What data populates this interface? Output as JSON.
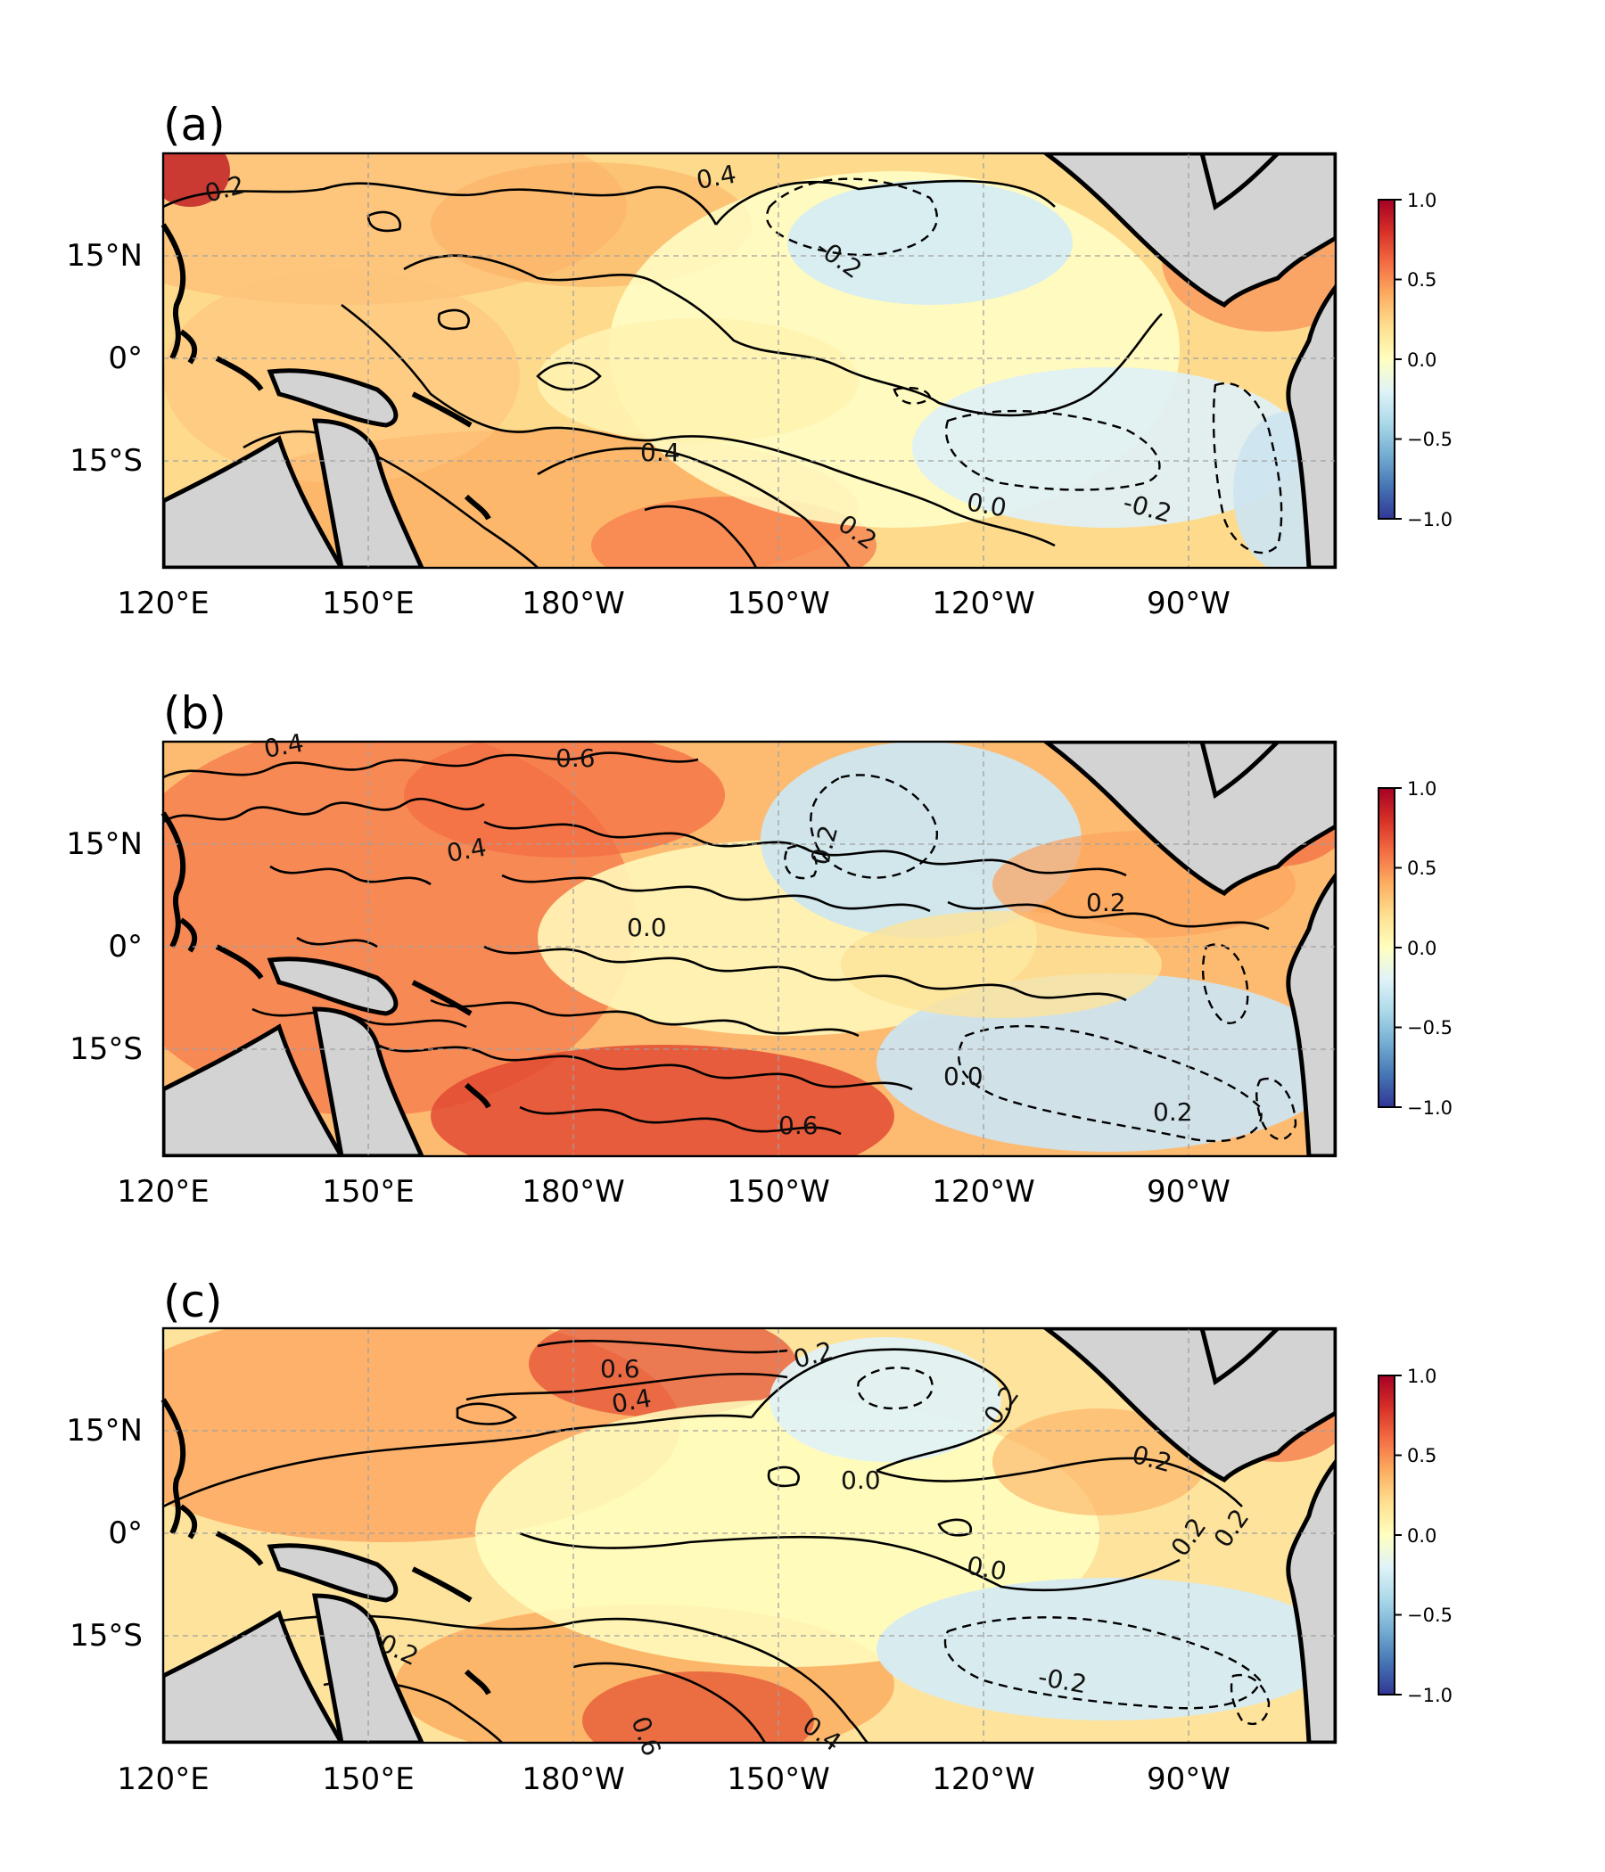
{
  "figure": {
    "panels": [
      {
        "label": "(a)",
        "contour_labels": [
          "0.2",
          "0.4",
          "-0.2",
          "0.4",
          "0.2",
          "0.0",
          "-0.2"
        ]
      },
      {
        "label": "(b)",
        "contour_labels": [
          "0.4",
          "0.6",
          "0.4",
          "0.2",
          "0.0",
          "0.2",
          "0.0",
          "0.6",
          "0.2"
        ]
      },
      {
        "label": "(c)",
        "contour_labels": [
          "0.6",
          "0.4",
          "0.2",
          "0.0",
          "0.2",
          "0.2",
          "0.0",
          "0.2",
          "0.2",
          "-0.2",
          "0.6",
          "0.4",
          "0.2"
        ]
      }
    ],
    "x_ticks": [
      "120°E",
      "150°E",
      "180°W",
      "150°W",
      "120°W",
      "90°W"
    ],
    "y_ticks": [
      "15°N",
      "0°",
      "15°S"
    ],
    "colorbar": {
      "ticks": [
        "1.0",
        "0.5",
        "0.0",
        "−0.5",
        "−1.0"
      ],
      "range": [
        -1.0,
        1.0
      ],
      "colormap": "RdYlBu_r",
      "colors": [
        "#313695",
        "#4575b4",
        "#74add1",
        "#abd9e9",
        "#e0f3f8",
        "#ffffbf",
        "#fee090",
        "#fdae61",
        "#f46d43",
        "#d73027",
        "#a50026"
      ]
    },
    "land_color": "#d3d3d3",
    "grid": true
  }
}
